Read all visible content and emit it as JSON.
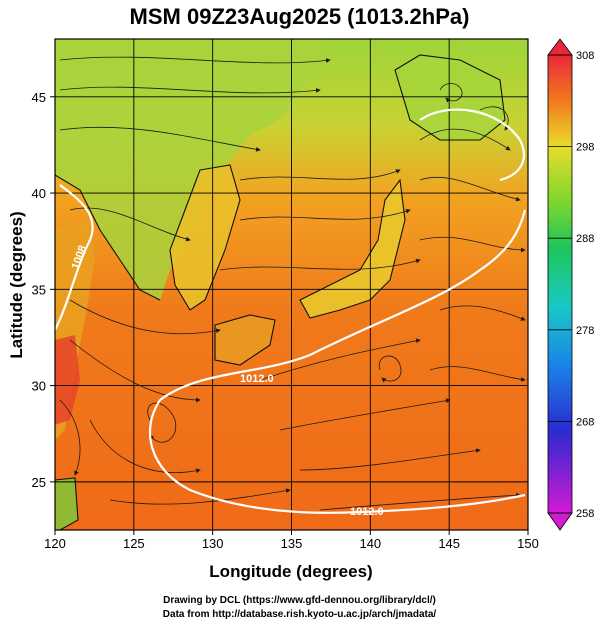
{
  "title": "MSM 09Z23Aug2025 (1013.2hPa)",
  "map": {
    "xlabel": "Longitude (degrees)",
    "ylabel": "Latitude  (degrees)",
    "lon_range": [
      120,
      150
    ],
    "lat_range": [
      22.5,
      48
    ],
    "lon_ticks": [
      "120",
      "125",
      "130",
      "135",
      "140",
      "145",
      "150"
    ],
    "lat_ticks": [
      "25",
      "30",
      "35",
      "40",
      "45"
    ],
    "isobar_labels": [
      "1008",
      "1012.0",
      "1012.0"
    ],
    "grid": true
  },
  "colorbar": {
    "ticks": [
      "308",
      "298",
      "288",
      "278",
      "268",
      "258"
    ],
    "min": 258,
    "max": 308
  },
  "colors": {
    "ocean": "#f07a1a",
    "land_high": "#e8c02a",
    "land_north": "#9ed43a",
    "isobar": "#ffffff"
  },
  "credits": {
    "line1": "Drawing by DCL (https://www.gfd-dennou.org/library/dcl/)",
    "line2": "Data from http://database.rish.kyoto-u.ac.jp/arch/jmadata/"
  }
}
